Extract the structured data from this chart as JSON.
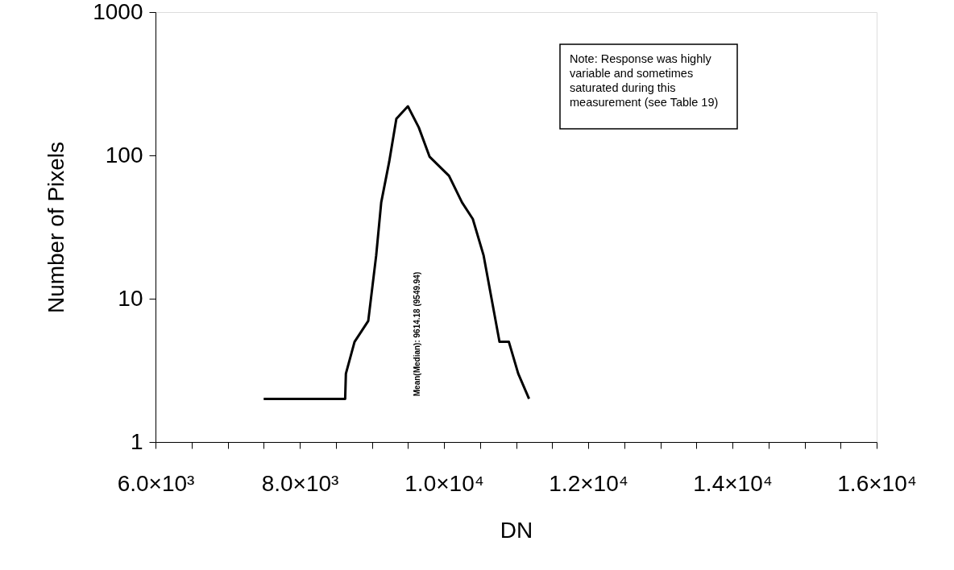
{
  "chart_data": {
    "type": "line",
    "xlabel": "DN",
    "ylabel": "Number of Pixels",
    "x": [
      7500,
      8000,
      8630,
      8640,
      8760,
      8950,
      9060,
      9130,
      9240,
      9340,
      9500,
      9650,
      9800,
      10070,
      10250,
      10400,
      10550,
      10660,
      10770,
      10900,
      11030,
      11180
    ],
    "series": [
      {
        "color": "#000000",
        "values": [
          2,
          2,
          2,
          3,
          5,
          7,
          20,
          47,
          90,
          180,
          220,
          157,
          98,
          72,
          47,
          36,
          20,
          10,
          5,
          5,
          3,
          2
        ]
      }
    ],
    "xlim": [
      6000,
      16000
    ],
    "xticks": [
      {
        "value": 6000,
        "label": "6.0×10³"
      },
      {
        "value": 6500,
        "label": null
      },
      {
        "value": 7000,
        "label": null
      },
      {
        "value": 7500,
        "label": null
      },
      {
        "value": 8000,
        "label": "8.0×10³"
      },
      {
        "value": 8500,
        "label": null
      },
      {
        "value": 9000,
        "label": null
      },
      {
        "value": 9500,
        "label": null
      },
      {
        "value": 10000,
        "label": "1.0×10⁴"
      },
      {
        "value": 10500,
        "label": null
      },
      {
        "value": 11000,
        "label": null
      },
      {
        "value": 11500,
        "label": null
      },
      {
        "value": 12000,
        "label": "1.2×10⁴"
      },
      {
        "value": 12500,
        "label": null
      },
      {
        "value": 13000,
        "label": null
      },
      {
        "value": 13500,
        "label": null
      },
      {
        "value": 14000,
        "label": "1.4×10⁴"
      },
      {
        "value": 14500,
        "label": null
      },
      {
        "value": 15000,
        "label": null
      },
      {
        "value": 15500,
        "label": null
      },
      {
        "value": 16000,
        "label": "1.6×10⁴"
      }
    ],
    "ylim": [
      1,
      1000
    ],
    "yticks": [
      1,
      10,
      100,
      1000
    ],
    "log": "y",
    "grid": false,
    "marker": "none",
    "line_style": "solid",
    "annotations": [
      "Note: Response was highly\nvariable and sometimes\nsaturated during this\nmeasurement (see Table 19)",
      "Mean(Median): 9614.18 (9549.94)"
    ]
  }
}
